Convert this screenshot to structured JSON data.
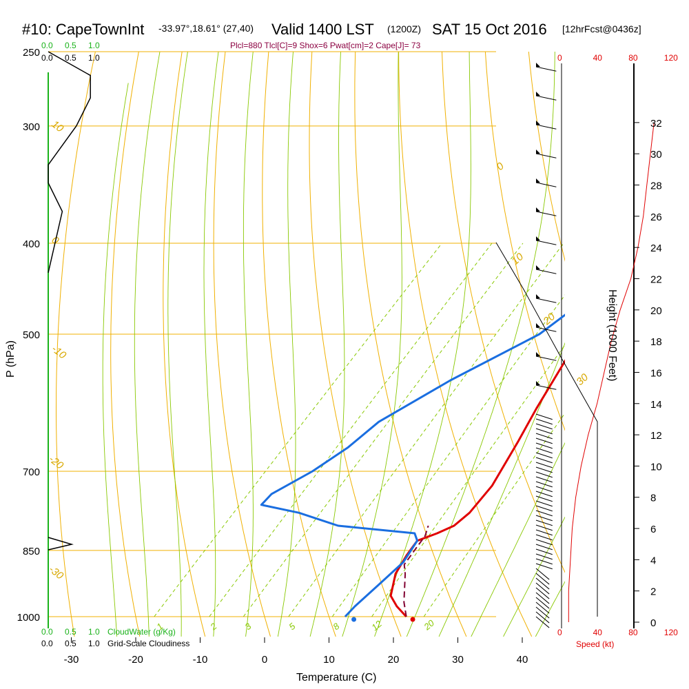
{
  "header": {
    "station": "#10: CapeTownInt",
    "coords": "-33.97°,18.61° (27,40)",
    "valid": "Valid 1400 LST",
    "zulu": "(1200Z)",
    "date": "SAT 15 Oct 2016",
    "forecast": "[12hrFcst@0436z]",
    "params": "Plcl=880 Tlcl[C]=9 Shox=6 Pwat[cm]=2 Cape[J]= 73"
  },
  "colors": {
    "temperature": "#e00000",
    "dewpoint": "#1a6ee0",
    "parcel": "#800030",
    "isobar": "#f0b000",
    "dry_adiabat": "#f0b000",
    "moist_adiabat": "#88c800",
    "mixing_ratio": "#88c800",
    "cloud_water": "#19b219",
    "speed": "#e00000"
  },
  "chart_data": {
    "type": "line",
    "title": "#10: CapeTownInt -33.97°,18.61° (27,40)  Valid 1400 LST (1200Z) SAT 15 Oct 2016 [12hrFcst@0436z]",
    "xlabel": "Temperature (C)",
    "ylabel": "P (hPa)",
    "right_ylabel": "Height (1000 Feet)",
    "x_ticks": [
      "-30",
      "-20",
      "-10",
      "0",
      "10",
      "20",
      "30",
      "40"
    ],
    "y_ticks": [
      "250",
      "300",
      "400",
      "500",
      "700",
      "850",
      "1000"
    ],
    "height_ticks": [
      "0",
      "2",
      "4",
      "6",
      "8",
      "10",
      "12",
      "14",
      "16",
      "18",
      "20",
      "22",
      "24",
      "26",
      "28",
      "30",
      "32"
    ],
    "speed_ticks": [
      "0",
      "40",
      "80",
      "120"
    ],
    "speed_label": "Speed (kt)",
    "cloud_scale_ticks": [
      "0.0",
      "0.5",
      "1.0"
    ],
    "cloud_water_label": "CloudWater (g/Kg)",
    "cloudiness_label": "Grid-Scale Cloudiness",
    "dry_adiabat_labels": [
      "10",
      "0",
      "-10",
      "-20",
      "-30"
    ],
    "moist_adiabat_labels": [
      "0",
      "10",
      "20",
      "30"
    ],
    "mixing_ratio_labels": [
      "1",
      "2",
      "3",
      "5",
      "8",
      "12",
      "20"
    ],
    "xlim": [
      -33,
      46
    ],
    "ylim": [
      1000,
      250
    ],
    "surface_temperature": 23,
    "surface_dewpoint": 14.5,
    "series": [
      {
        "key": "temperature",
        "points": [
          [
            22,
            1000
          ],
          [
            19,
            975
          ],
          [
            16.5,
            950
          ],
          [
            14,
            900
          ],
          [
            13,
            860
          ],
          [
            12.5,
            830
          ],
          [
            14.5,
            815
          ],
          [
            16,
            800
          ],
          [
            16.5,
            775
          ],
          [
            16,
            725
          ],
          [
            13.5,
            650
          ],
          [
            11.5,
            600
          ],
          [
            7.5,
            500
          ],
          [
            4,
            440
          ],
          [
            2,
            400
          ],
          [
            -1.5,
            350
          ],
          [
            -5,
            320
          ],
          [
            -8,
            300
          ],
          [
            -12,
            262
          ]
        ]
      },
      {
        "key": "dewpoint",
        "points": [
          [
            12.5,
            1000
          ],
          [
            12.5,
            975
          ],
          [
            13,
            925
          ],
          [
            13.5,
            875
          ],
          [
            12.5,
            830
          ],
          [
            11,
            815
          ],
          [
            -2,
            800
          ],
          [
            -10,
            775
          ],
          [
            -17,
            760
          ],
          [
            -17,
            740
          ],
          [
            -14,
            700
          ],
          [
            -12,
            660
          ],
          [
            -11,
            620
          ],
          [
            -6,
            560
          ],
          [
            1,
            500
          ],
          [
            3,
            460
          ],
          [
            3,
            420
          ],
          [
            2,
            400
          ],
          [
            -1,
            370
          ],
          [
            -5,
            340
          ],
          [
            -9,
            300
          ],
          [
            -16,
            262
          ]
        ]
      },
      {
        "key": "parcel",
        "points": [
          [
            22,
            1000
          ],
          [
            19.5,
            965
          ],
          [
            15.5,
            900
          ],
          [
            14,
            880
          ],
          [
            13.5,
            850
          ],
          [
            13,
            820
          ],
          [
            12,
            800
          ]
        ]
      }
    ],
    "height_profile_kft": [
      0,
      2,
      4,
      6,
      8,
      10,
      12,
      14,
      16,
      18,
      20,
      22,
      24,
      26,
      28,
      30,
      32
    ],
    "wind_speed_kt": [
      8,
      8,
      10,
      12,
      16,
      22,
      30,
      40,
      48,
      56,
      66,
      78,
      86,
      92,
      96,
      100,
      104
    ],
    "cloud_water_gkg": [
      [
        0.0,
        1000
      ],
      [
        0.3,
        850
      ],
      [
        0.0,
        820
      ]
    ],
    "cloudiness": [
      [
        0.0,
        250
      ],
      [
        0.9,
        265
      ],
      [
        0.9,
        280
      ],
      [
        0.6,
        300
      ],
      [
        0.0,
        330
      ],
      [
        0.0,
        345
      ],
      [
        0.3,
        370
      ],
      [
        0.0,
        430
      ]
    ]
  }
}
